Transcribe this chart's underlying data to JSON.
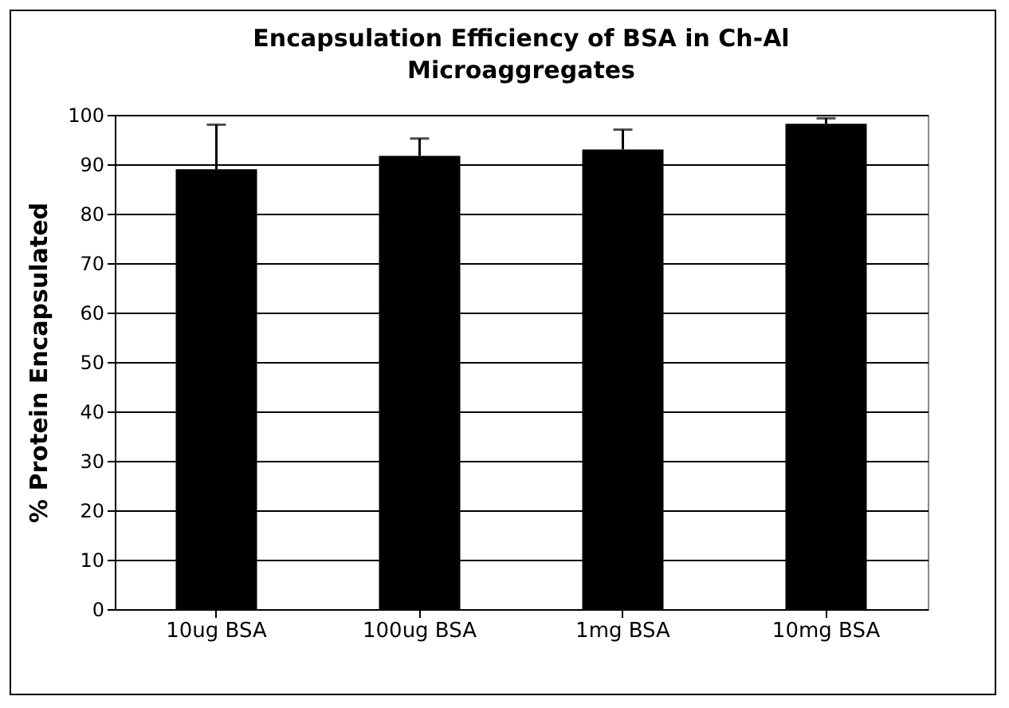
{
  "chart_data": {
    "type": "bar",
    "title": "Encapsulation Efficiency of BSA in Ch-Al Microaggregates",
    "ylabel": "% Protein Encapsulated",
    "categories": [
      "10ug BSA",
      "100ug BSA",
      "1mg BSA",
      "10mg BSA"
    ],
    "values": [
      89,
      91.7,
      93,
      98.2
    ],
    "errors": [
      [
        89,
        98
      ],
      [
        91.7,
        95.2
      ],
      [
        93,
        97
      ],
      [
        98.2,
        99.3
      ]
    ],
    "color": "#000000",
    "ylim": [
      0,
      100
    ],
    "yticks": [
      0,
      10,
      20,
      30,
      40,
      50,
      60,
      70,
      80,
      90,
      100
    ],
    "grid": "y"
  }
}
